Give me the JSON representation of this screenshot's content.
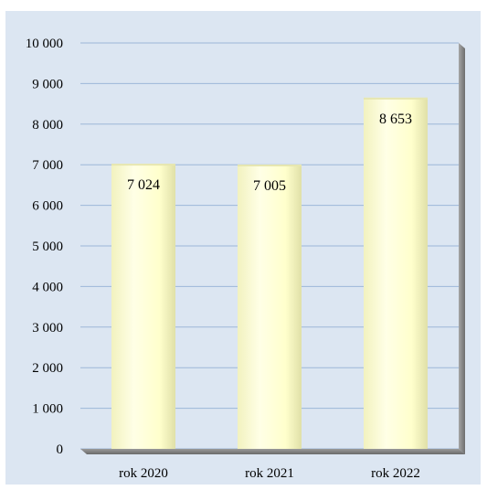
{
  "chart_data": {
    "type": "bar",
    "categories": [
      "rok 2020",
      "rok 2021",
      "rok 2022"
    ],
    "values": [
      7024,
      7005,
      8653
    ],
    "data_labels": [
      "7 024",
      "7 005",
      "8 653"
    ],
    "ylim": [
      0,
      10000
    ],
    "y_ticks": [
      0,
      1000,
      2000,
      3000,
      4000,
      5000,
      6000,
      7000,
      8000,
      9000,
      10000
    ],
    "y_tick_labels": [
      "0",
      "1 000",
      "2 000",
      "3 000",
      "4 000",
      "5 000",
      "6 000",
      "7 000",
      "8 000",
      "9 000",
      "10 000"
    ],
    "grid": true,
    "legend": "none",
    "colors": {
      "background": "#dce6f2",
      "gridline": "#9db7d8",
      "bar_fill": "#ffffcc",
      "bar_edge": "#e6e6b0",
      "wall_shadow": "#8c8c8c",
      "floor": "#7f7f7f"
    }
  }
}
